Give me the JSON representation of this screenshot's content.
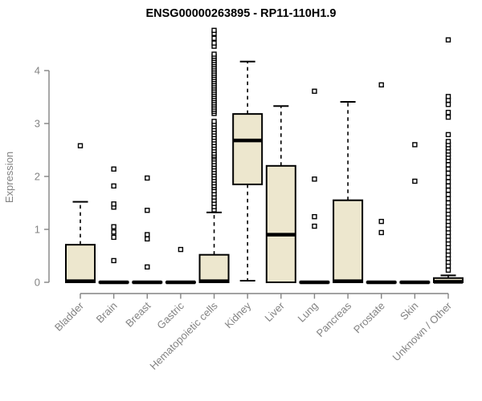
{
  "chart_data": {
    "type": "box",
    "title": "ENSG00000263895 - RP11-110H1.9",
    "ylabel": "Expression",
    "xlabel": "",
    "yticks": [
      0,
      1,
      2,
      3,
      4
    ],
    "ylim": [
      0,
      4.8
    ],
    "grid": false,
    "legend": "none",
    "box_fill_color": "#EDE7CE",
    "box_line_color": "#000000",
    "axis_color": "#838383",
    "categories": [
      "Bladder",
      "Brain",
      "Breast",
      "Gastric",
      "Hematopoietic cells",
      "Kidney",
      "Liver",
      "Lung",
      "Pancreas",
      "Prostate",
      "Skin",
      "Unknown / Other"
    ],
    "series": [
      {
        "category": "Bladder",
        "whisker_low": 0,
        "q1": 0,
        "median": 0.02,
        "q3": 0.71,
        "whisker_high": 1.52,
        "outliers": [
          2.58
        ]
      },
      {
        "category": "Brain",
        "whisker_low": 0,
        "q1": 0,
        "median": 0,
        "q3": 0,
        "whisker_high": 0,
        "outliers": [
          0.41,
          0.85,
          0.95,
          1.05,
          1.42,
          1.48,
          1.82,
          2.14
        ]
      },
      {
        "category": "Breast",
        "whisker_low": 0,
        "q1": 0,
        "median": 0,
        "q3": 0,
        "whisker_high": 0,
        "outliers": [
          0.29,
          0.82,
          0.9,
          1.36,
          1.97
        ]
      },
      {
        "category": "Gastric",
        "whisker_low": 0,
        "q1": 0,
        "median": 0,
        "q3": 0,
        "whisker_high": 0,
        "outliers": [
          0.62
        ]
      },
      {
        "category": "Hematopoietic cells",
        "whisker_low": 0,
        "q1": 0,
        "median": 0.02,
        "q3": 0.52,
        "whisker_high": 1.32,
        "outliers": [
          1.37,
          1.43,
          1.49,
          1.55,
          1.61,
          1.67,
          1.73,
          1.79,
          1.83,
          1.88,
          1.93,
          1.98,
          2.03,
          2.08,
          2.13,
          2.18,
          2.23,
          2.28,
          2.33,
          2.37,
          2.4,
          2.44,
          2.49,
          2.54,
          2.59,
          2.64,
          2.69,
          2.74,
          2.79,
          2.84,
          2.89,
          2.94,
          2.99,
          3.04,
          3.19,
          3.23,
          3.27,
          3.31,
          3.35,
          3.39,
          3.43,
          3.47,
          3.51,
          3.55,
          3.59,
          3.63,
          3.67,
          3.71,
          3.75,
          3.79,
          3.83,
          3.87,
          3.91,
          3.95,
          3.99,
          4.03,
          4.07,
          4.11,
          4.15,
          4.19,
          4.23,
          4.27,
          4.31,
          4.46,
          4.52,
          4.61,
          4.7,
          4.76
        ]
      },
      {
        "category": "Kidney",
        "whisker_low": 0.03,
        "q1": 1.85,
        "median": 2.68,
        "q3": 3.18,
        "whisker_high": 4.17,
        "outliers": []
      },
      {
        "category": "Liver",
        "whisker_low": 0,
        "q1": 0,
        "median": 0.9,
        "q3": 2.2,
        "whisker_high": 3.33,
        "outliers": []
      },
      {
        "category": "Lung",
        "whisker_low": 0,
        "q1": 0,
        "median": 0,
        "q3": 0,
        "whisker_high": 0,
        "outliers": [
          1.06,
          1.24,
          1.95,
          3.61
        ]
      },
      {
        "category": "Pancreas",
        "whisker_low": 0,
        "q1": 0,
        "median": 0.02,
        "q3": 1.55,
        "whisker_high": 3.41,
        "outliers": []
      },
      {
        "category": "Prostate",
        "whisker_low": 0,
        "q1": 0,
        "median": 0,
        "q3": 0,
        "whisker_high": 0,
        "outliers": [
          0.94,
          1.15,
          3.73
        ]
      },
      {
        "category": "Skin",
        "whisker_low": 0,
        "q1": 0,
        "median": 0,
        "q3": 0,
        "whisker_high": 0,
        "outliers": [
          1.91,
          2.6
        ]
      },
      {
        "category": "Unknown / Other",
        "whisker_low": 0,
        "q1": 0,
        "median": 0.01,
        "q3": 0.08,
        "whisker_high": 0.13,
        "outliers": [
          0.23,
          0.31,
          0.38,
          0.45,
          0.52,
          0.59,
          0.66,
          0.73,
          0.8,
          0.87,
          0.94,
          1.01,
          1.08,
          1.15,
          1.22,
          1.29,
          1.36,
          1.43,
          1.5,
          1.58,
          1.66,
          1.74,
          1.82,
          1.9,
          1.98,
          2.06,
          2.14,
          2.22,
          2.3,
          2.36,
          2.42,
          2.48,
          2.54,
          2.6,
          2.66,
          2.79,
          3.12,
          3.21,
          3.36,
          3.44,
          3.51,
          4.58
        ]
      }
    ]
  }
}
